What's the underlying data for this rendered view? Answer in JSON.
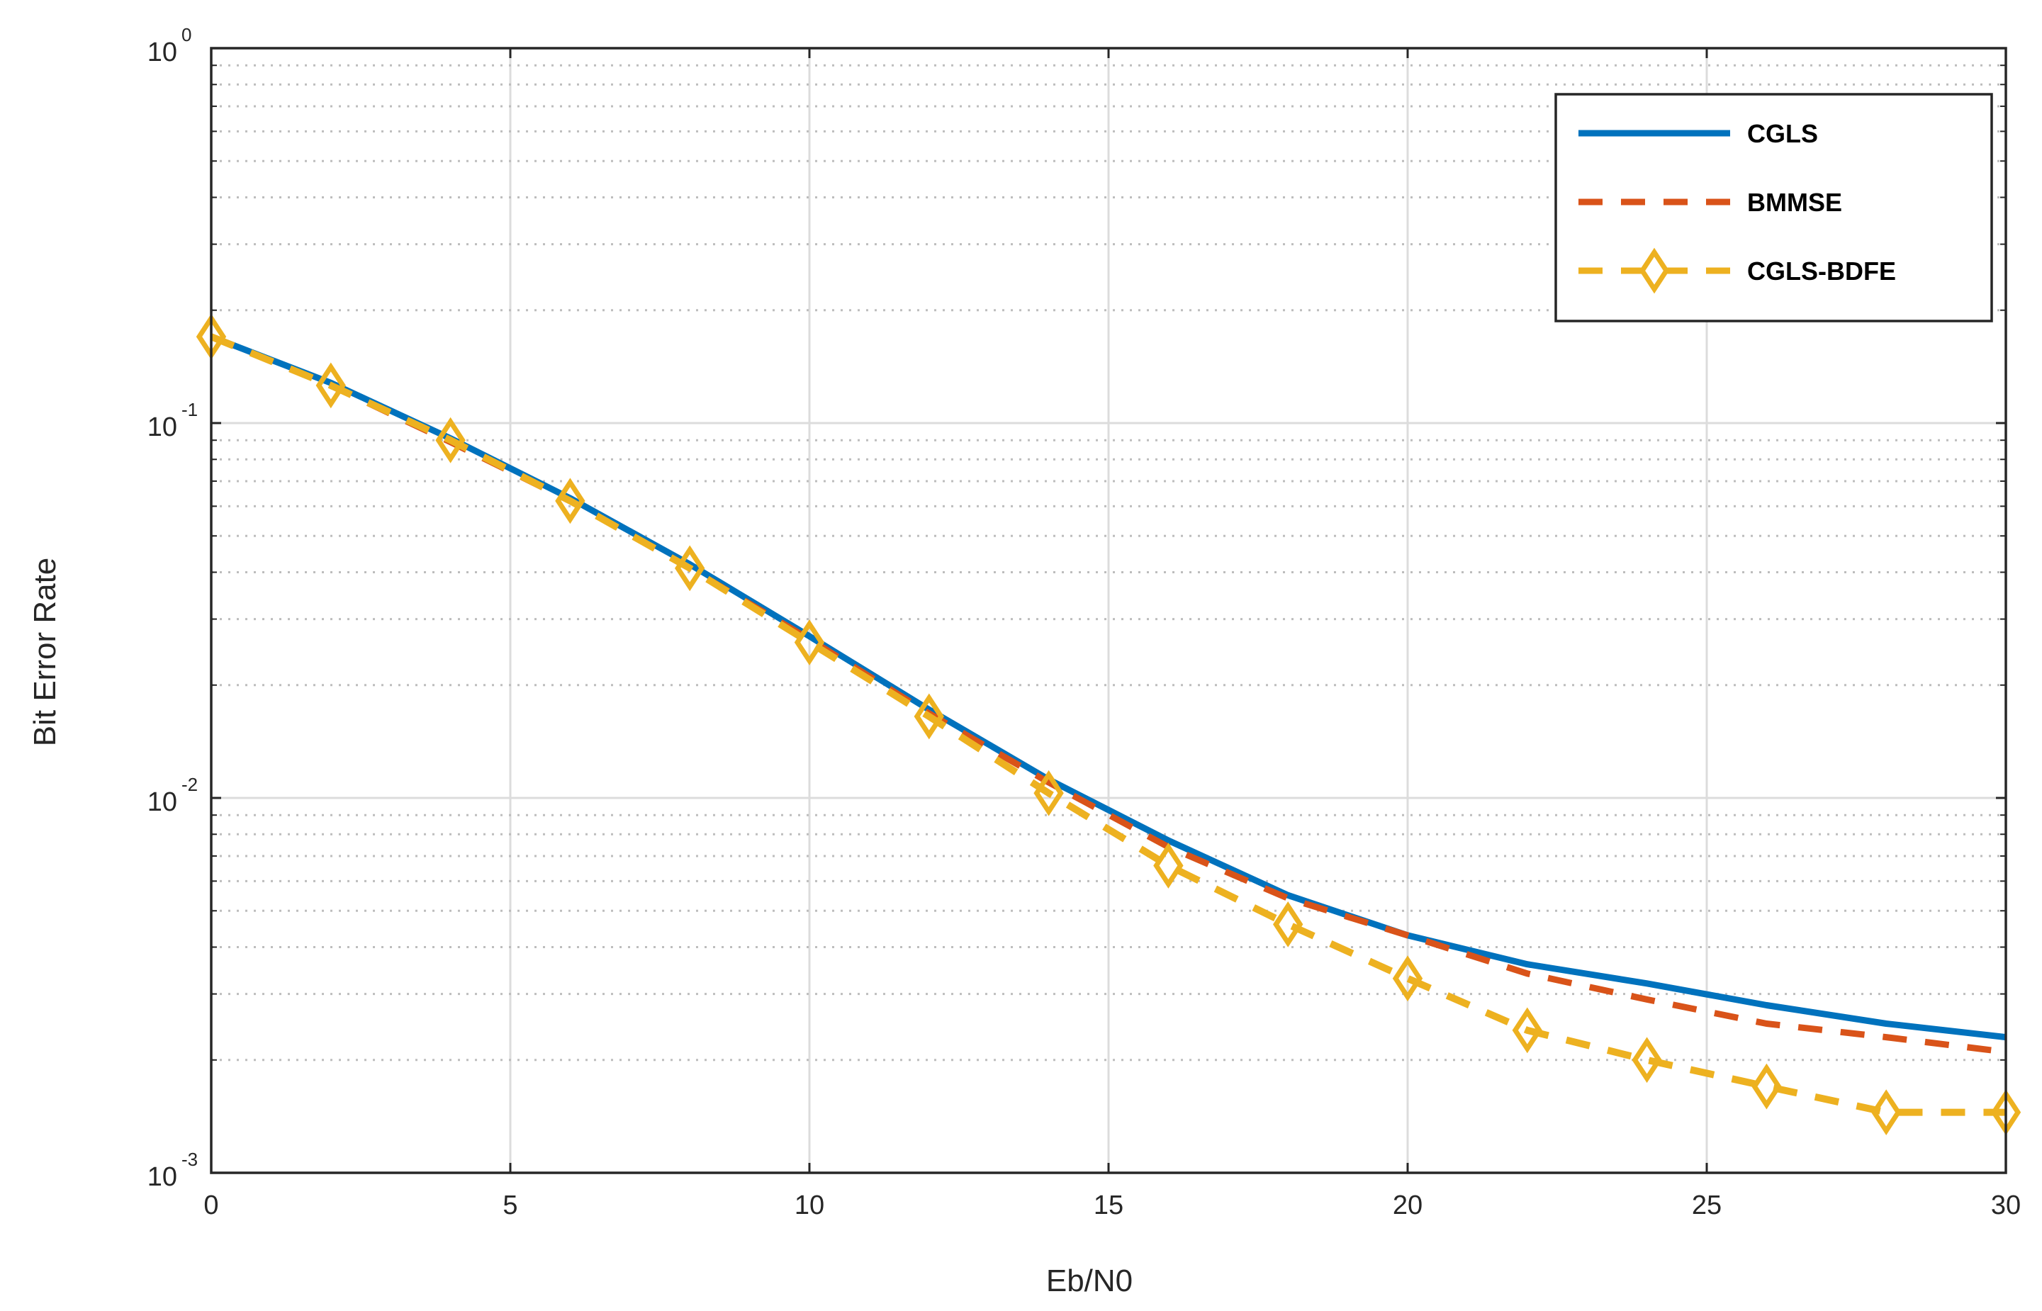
{
  "chart_data": {
    "type": "line",
    "xlabel": "Eb/N0",
    "ylabel": "Bit Error Rate",
    "xlim": [
      0,
      30
    ],
    "ylim": [
      0.001,
      1
    ],
    "yscale": "log",
    "grid": true,
    "legend_position": "top-right",
    "x_ticks": [
      "0",
      "5",
      "10",
      "15",
      "20",
      "25",
      "30"
    ],
    "y_ticks": [
      {
        "base": "10",
        "exp": "0"
      },
      {
        "base": "10",
        "exp": "-1"
      },
      {
        "base": "10",
        "exp": "-2"
      },
      {
        "base": "10",
        "exp": "-3"
      }
    ],
    "x": [
      0,
      2,
      4,
      6,
      8,
      10,
      12,
      14,
      16,
      18,
      20,
      22,
      24,
      26,
      28,
      30
    ],
    "series": [
      {
        "name": "CGLS",
        "color": "#0072BD",
        "style": "solid",
        "marker": "none",
        "values": [
          0.17,
          0.128,
          0.091,
          0.063,
          0.042,
          0.027,
          0.0172,
          0.0112,
          0.0077,
          0.0055,
          0.0043,
          0.0036,
          0.0032,
          0.0028,
          0.0025,
          0.0023
        ]
      },
      {
        "name": "BMMSE",
        "color": "#D95319",
        "style": "dashed",
        "marker": "none",
        "values": [
          0.17,
          0.126,
          0.089,
          0.062,
          0.041,
          0.0265,
          0.0168,
          0.011,
          0.0074,
          0.0054,
          0.0043,
          0.0034,
          0.0029,
          0.0025,
          0.0023,
          0.0021
        ]
      },
      {
        "name": "CGLS-BDFE",
        "color": "#EDB120",
        "style": "dashed",
        "marker": "diamond",
        "values": [
          0.17,
          0.126,
          0.09,
          0.062,
          0.041,
          0.026,
          0.0165,
          0.0103,
          0.0066,
          0.0046,
          0.0033,
          0.0024,
          0.002,
          0.0017,
          0.00145,
          0.00145
        ]
      }
    ]
  }
}
